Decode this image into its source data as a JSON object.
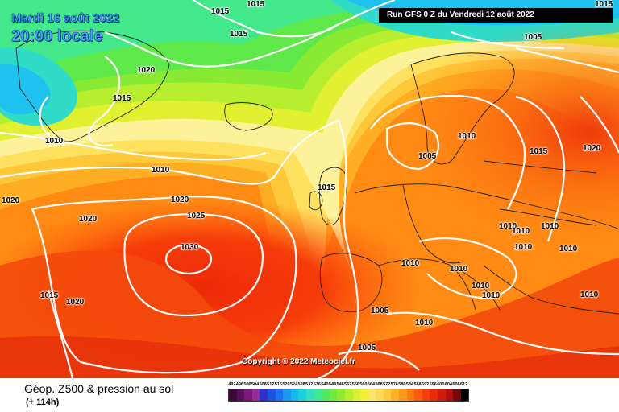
{
  "header": {
    "date": "Mardi 16 août 2022",
    "local_time": "20:00 locale",
    "run": "Run GFS 0 Z du Vendredi 12 août 2022"
  },
  "copyright": "Copyright © 2022 Meteociel.fr",
  "footer": {
    "product": "Géop. Z500 & pression au sol",
    "lead": "(+ 114h)"
  },
  "scale": {
    "values": [
      "492",
      "496",
      "500",
      "504",
      "508",
      "512",
      "516",
      "520",
      "524",
      "528",
      "532",
      "536",
      "540",
      "544",
      "548",
      "552",
      "556",
      "560",
      "564",
      "568",
      "572",
      "576",
      "580",
      "584",
      "588",
      "592",
      "596",
      "600",
      "604",
      "608",
      "612"
    ],
    "colors": [
      "#3b0a3b",
      "#5a0f5e",
      "#7a1a7c",
      "#9a2a9b",
      "#3030c8",
      "#2050e0",
      "#1a74f0",
      "#1a98f5",
      "#12b8f0",
      "#18d0e0",
      "#30e0c0",
      "#40e890",
      "#50e860",
      "#70ea40",
      "#90ea30",
      "#b8ee30",
      "#d8f030",
      "#f2ee3a",
      "#fce66e",
      "#ffd85a",
      "#ffc73a",
      "#ffb126",
      "#ff9818",
      "#ff7a10",
      "#ff5a0c",
      "#f63c0a",
      "#e82a0a",
      "#cf1d0d",
      "#b01010",
      "#7a0808",
      "#000000"
    ]
  },
  "isobar_labels": [
    {
      "text": "1015"
    },
    {
      "text": "1015"
    },
    {
      "text": "1015"
    },
    {
      "text": "1015"
    },
    {
      "text": "1005"
    },
    {
      "text": "1020"
    },
    {
      "text": "1015"
    },
    {
      "text": "1010"
    },
    {
      "text": "1010"
    },
    {
      "text": "1020"
    },
    {
      "text": "1020"
    },
    {
      "text": "1020"
    },
    {
      "text": "1025"
    },
    {
      "text": "1030"
    },
    {
      "text": "1015"
    },
    {
      "text": "1020"
    },
    {
      "text": "1010"
    },
    {
      "text": "1005"
    },
    {
      "text": "1015"
    },
    {
      "text": "1015"
    },
    {
      "text": "1020"
    },
    {
      "text": "1010"
    },
    {
      "text": "1010"
    },
    {
      "text": "1010"
    },
    {
      "text": "1010"
    },
    {
      "text": "1010"
    },
    {
      "text": "1010"
    },
    {
      "text": "1010"
    },
    {
      "text": "1010"
    },
    {
      "text": "1010"
    },
    {
      "text": "1010"
    },
    {
      "text": "1005"
    },
    {
      "text": "1010"
    },
    {
      "text": "1005"
    }
  ]
}
